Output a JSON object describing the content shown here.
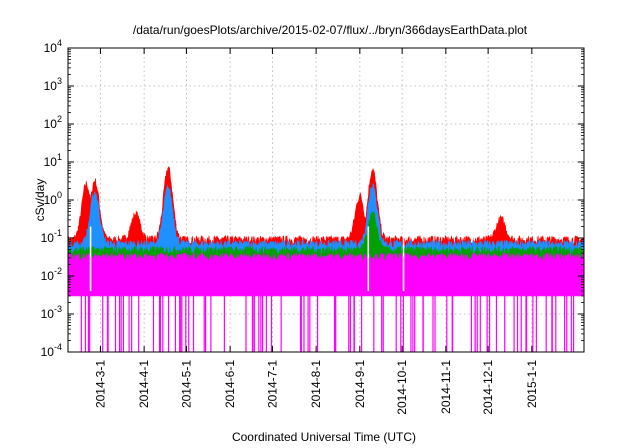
{
  "chart_data": {
    "type": "area",
    "title": "/data/run/goesPlots/archive/2015-02-07/flux/../bryn/366daysEarthData.plot",
    "xlabel": "Coordinated Universal Time (UTC)",
    "ylabel": "cSv/day",
    "yscale": "log",
    "ylim": [
      0.0001,
      10000
    ],
    "xlim": [
      "2014-02-06",
      "2015-02-07"
    ],
    "grid": true,
    "x_ticks": [
      "2014-3-1",
      "2014-4-1",
      "2014-5-1",
      "2014-6-1",
      "2014-7-1",
      "2014-8-1",
      "2014-9-1",
      "2014-10-1",
      "2014-11-1",
      "2014-12-1",
      "2015-1-1"
    ],
    "y_ticks": [
      {
        "base": "10",
        "exp": "-4",
        "value": 0.0001
      },
      {
        "base": "10",
        "exp": "-3",
        "value": 0.001
      },
      {
        "base": "10",
        "exp": "-2",
        "value": 0.01
      },
      {
        "base": "10",
        "exp": "-1",
        "value": 0.1
      },
      {
        "base": "10",
        "exp": "0",
        "value": 1
      },
      {
        "base": "10",
        "exp": "1",
        "value": 10
      },
      {
        "base": "10",
        "exp": "2",
        "value": 100
      },
      {
        "base": "10",
        "exp": "3",
        "value": 1000
      },
      {
        "base": "10",
        "exp": "4",
        "value": 10000
      }
    ],
    "series": [
      {
        "color": "#ff0000",
        "baseline": 0.085,
        "band_low": 0.004,
        "peaks": [
          {
            "date": "2014-02-19",
            "value": 2.5
          },
          {
            "date": "2014-02-25",
            "value": 3.0
          },
          {
            "date": "2014-03-26",
            "value": 0.4
          },
          {
            "date": "2014-04-18",
            "value": 6.5
          },
          {
            "date": "2014-09-01",
            "value": 1.2
          },
          {
            "date": "2014-09-10",
            "value": 6.0
          },
          {
            "date": "2014-12-10",
            "value": 0.3
          }
        ]
      },
      {
        "color": "#1e90ff",
        "baseline": 0.065,
        "band_low": 0.004,
        "peaks": [
          {
            "date": "2014-02-25",
            "value": 1.5
          },
          {
            "date": "2014-04-18",
            "value": 2.0
          },
          {
            "date": "2014-09-10",
            "value": 2.5
          }
        ]
      },
      {
        "color": "#00a000",
        "baseline": 0.045,
        "band_low": 0.004,
        "peaks": [
          {
            "date": "2014-09-10",
            "value": 0.4
          }
        ]
      },
      {
        "color": "#ff00ff",
        "baseline": 0.03,
        "band_low": 0.003,
        "min_value": 0.0001,
        "dips": [
          "2014-02-22",
          "2014-09-07",
          "2014-10-02"
        ]
      }
    ]
  }
}
